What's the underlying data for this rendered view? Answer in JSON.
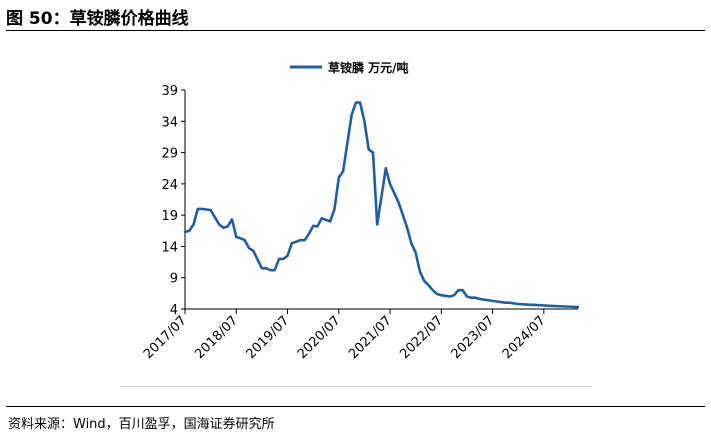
{
  "figure": {
    "title": "图 50：草铵膦价格曲线",
    "source": "资料来源：Wind，百川盈孚，国海证券研究所"
  },
  "colors": {
    "series": "#1f5fa0",
    "axis": "#000000"
  },
  "chart_data": {
    "type": "line",
    "title": "",
    "xlabel": "",
    "ylabel": "",
    "ylim": [
      4,
      39
    ],
    "yticks": [
      4,
      9,
      14,
      19,
      24,
      29,
      34,
      39
    ],
    "xlim": [
      "2017-07",
      "2025-03"
    ],
    "x_tick_labels": [
      "2017/07",
      "2018/07",
      "2019/07",
      "2020/07",
      "2021/07",
      "2022/07",
      "2023/07",
      "2024/07"
    ],
    "grid": false,
    "legend_position": "top-center",
    "series": [
      {
        "name": "草铵膦 万元/吨",
        "x": [
          "2017-07",
          "2017-08",
          "2017-09",
          "2017-10",
          "2017-11",
          "2018-01",
          "2018-03",
          "2018-04",
          "2018-05",
          "2018-06",
          "2018-07",
          "2018-08",
          "2018-09",
          "2018-10",
          "2018-11",
          "2019-01",
          "2019-02",
          "2019-03",
          "2019-04",
          "2019-05",
          "2019-06",
          "2019-07",
          "2019-08",
          "2019-10",
          "2019-11",
          "2019-12",
          "2020-01",
          "2020-02",
          "2020-03",
          "2020-05",
          "2020-06",
          "2020-07",
          "2020-08",
          "2020-10",
          "2020-11",
          "2020-12",
          "2021-01",
          "2021-02",
          "2021-03",
          "2021-04",
          "2021-06",
          "2021-07",
          "2021-08",
          "2021-09",
          "2021-10",
          "2021-11",
          "2021-12",
          "2022-01",
          "2022-02",
          "2022-03",
          "2022-04",
          "2022-05",
          "2022-06",
          "2022-07",
          "2022-08",
          "2022-09",
          "2022-10",
          "2022-11",
          "2022-12",
          "2023-01",
          "2023-02",
          "2023-03",
          "2023-04",
          "2023-05",
          "2023-06",
          "2023-07",
          "2023-08",
          "2023-10",
          "2023-11",
          "2023-12",
          "2024-01",
          "2024-03",
          "2024-06",
          "2024-09",
          "2024-12",
          "2025-03"
        ],
        "values": [
          16.3,
          16.5,
          17.5,
          20.0,
          20.0,
          19.8,
          17.5,
          17.0,
          17.2,
          18.3,
          15.5,
          15.3,
          15.0,
          13.7,
          13.3,
          10.5,
          10.5,
          10.2,
          10.2,
          12.0,
          12.0,
          12.5,
          14.5,
          15.0,
          15.0,
          16.0,
          17.3,
          17.2,
          18.5,
          18.0,
          20.0,
          25.0,
          26.0,
          35.0,
          37.0,
          37.0,
          34.0,
          29.5,
          29.0,
          17.5,
          26.5,
          24.0,
          22.5,
          21.0,
          19.0,
          17.0,
          14.5,
          13.0,
          10.0,
          8.5,
          7.8,
          7.0,
          6.4,
          6.2,
          6.1,
          6.0,
          6.2,
          7.0,
          7.0,
          6.0,
          5.8,
          5.8,
          5.6,
          5.5,
          5.4,
          5.3,
          5.2,
          5.0,
          5.0,
          4.9,
          4.8,
          4.7,
          4.6,
          4.5,
          4.4,
          4.3
        ]
      }
    ]
  }
}
